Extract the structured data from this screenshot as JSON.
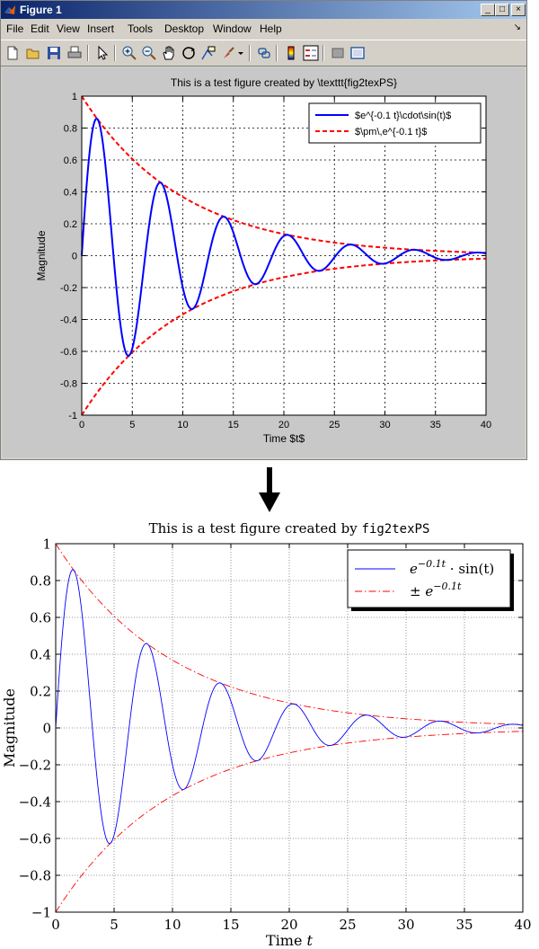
{
  "window": {
    "title": "Figure 1",
    "controls": {
      "minimize": "_",
      "maximize": "□",
      "close": "×"
    }
  },
  "menu": {
    "items": [
      "File",
      "Edit",
      "View",
      "Insert",
      "Tools",
      "Desktop",
      "Window",
      "Help"
    ],
    "corner_arrow": "↘"
  },
  "toolbar": {
    "icons": [
      "new-file-icon",
      "open-folder-icon",
      "save-icon",
      "print-icon",
      "pointer-icon",
      "zoom-in-icon",
      "zoom-out-icon",
      "pan-hand-icon",
      "rotate-3d-icon",
      "data-cursor-icon",
      "brush-icon",
      "brush-dropdown-icon",
      "link-icon",
      "colorbar-icon",
      "legend-icon",
      "hide-plot-tools-icon",
      "show-plot-tools-icon"
    ]
  },
  "colors": {
    "series_solid": "#0000ff",
    "series_dashed": "#ff0000",
    "figure_bg": "#c8c8c8",
    "window_bg": "#d4d0c8"
  },
  "chart_data": [
    {
      "type": "line",
      "title": "This is a test figure created by \\texttt{fig2texPS}",
      "xlabel": "Time $t$",
      "ylabel": "Magnitude",
      "xlim": [
        0,
        40
      ],
      "ylim": [
        -1,
        1
      ],
      "xticks": [
        0,
        5,
        10,
        15,
        20,
        25,
        30,
        35,
        40
      ],
      "xtick_labels": [
        "0",
        "5",
        "10",
        "15",
        "20",
        "25",
        "30",
        "35",
        "40"
      ],
      "yticks": [
        1,
        0.8,
        0.6,
        0.4,
        0.2,
        0,
        -0.2,
        -0.4,
        -0.6,
        -0.8,
        -1
      ],
      "ytick_labels": [
        "1",
        "0.8",
        "0.6",
        "0.4",
        "0.2",
        "0",
        "-0.2",
        "-0.4",
        "-0.6",
        "-0.8",
        "-1"
      ],
      "grid": true,
      "legend_position": "top-right",
      "series": [
        {
          "name": "$e^{-0.1 t}\\cdot\\sin(t)$",
          "function": "exp(-0.1 t)·sin(t)",
          "t_range": [
            0,
            40
          ],
          "color": "#0000ff",
          "style": "solid"
        },
        {
          "name": "$\\pm\\,e^{-0.1 t}$",
          "function": "±exp(-0.1 t)",
          "t_range": [
            0,
            40
          ],
          "color": "#ff0000",
          "style": "dashed"
        }
      ]
    },
    {
      "type": "line",
      "title_prefix": "This is a test figure created by ",
      "title_code": "fig2texPS",
      "xlabel_prefix": "Time ",
      "xlabel_var": "t",
      "ylabel": "Magnitude",
      "xlim": [
        0,
        40
      ],
      "ylim": [
        -1,
        1
      ],
      "xticks": [
        0,
        5,
        10,
        15,
        20,
        25,
        30,
        35,
        40
      ],
      "xtick_labels": [
        "0",
        "5",
        "10",
        "15",
        "20",
        "25",
        "30",
        "35",
        "40"
      ],
      "yticks": [
        1,
        0.8,
        0.6,
        0.4,
        0.2,
        0,
        -0.2,
        -0.4,
        -0.6,
        -0.8,
        -1
      ],
      "ytick_labels": [
        "1",
        "0.8",
        "0.6",
        "0.4",
        "0.2",
        "0",
        "−0.2",
        "−0.4",
        "−0.6",
        "−0.8",
        "−1"
      ],
      "grid": true,
      "legend_position": "top-right",
      "series": [
        {
          "name": "e^{-0.1t} · sin(t)",
          "function": "exp(-0.1 t)·sin(t)",
          "t_range": [
            0,
            40
          ],
          "color": "#0000ff",
          "style": "solid"
        },
        {
          "name": "± e^{-0.1t}",
          "function": "±exp(-0.1 t)",
          "t_range": [
            0,
            40
          ],
          "color": "#ff0000",
          "style": "dashdot"
        }
      ],
      "legend_labels": [
        {
          "base": "e",
          "exp": "−0.1t",
          "after": " · sin(t)"
        },
        {
          "before": "± ",
          "base": "e",
          "exp": "−0.1t",
          "after": ""
        }
      ]
    }
  ]
}
